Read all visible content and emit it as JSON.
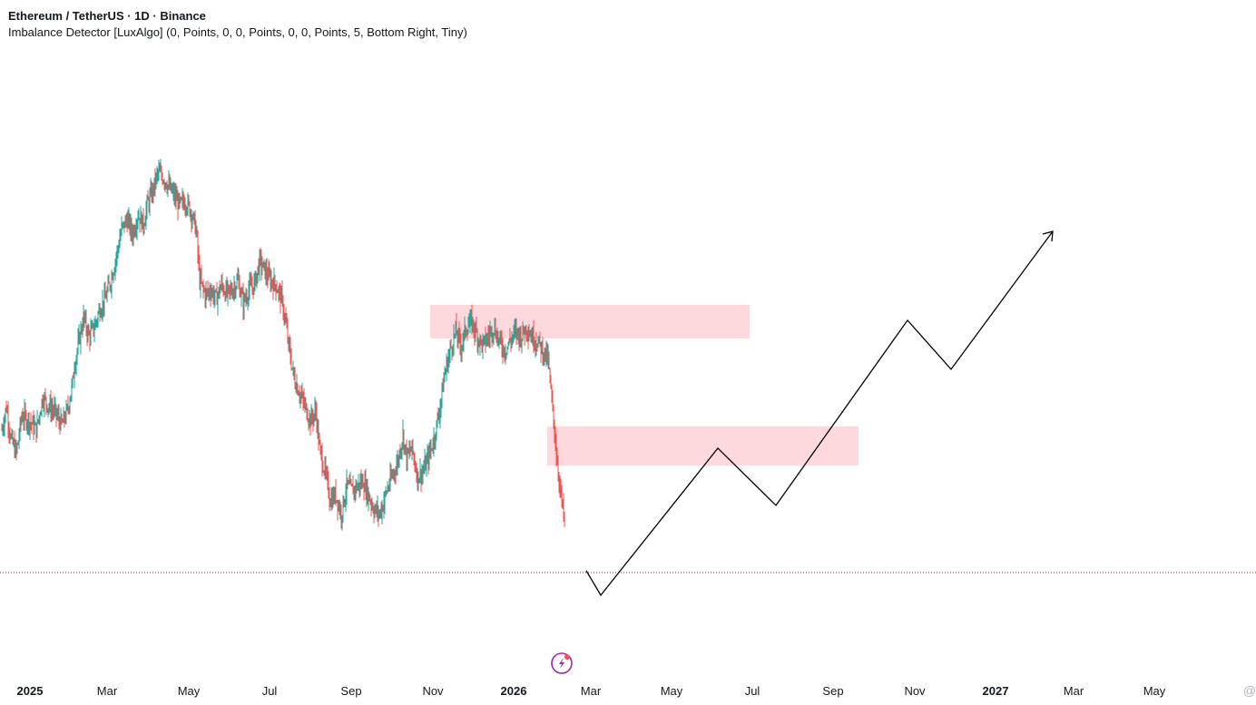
{
  "header": {
    "title": "Ethereum / TetherUS · 1D · Binance",
    "indicator": "Imbalance Detector [LuxAlgo] (0, Points, 0, 0, Points, 0, 0, Points, 5, Bottom Right, Tiny)"
  },
  "corner_mark": "@",
  "colors": {
    "up": "#26a69a",
    "down": "#ef5350",
    "zone": "#fdd9dd",
    "path": "#000000",
    "current_line": "#8b1e1e",
    "event_icon": "#9c27b0"
  },
  "chart_data": {
    "type": "candlestick",
    "x_axis_labels": [
      "2025",
      "Mar",
      "May",
      "Jul",
      "Sep",
      "Nov",
      "2026",
      "Mar",
      "May",
      "Jul",
      "Sep",
      "Nov",
      "2027",
      "Mar",
      "May"
    ],
    "bold_labels": [
      "2025",
      "2026",
      "2027"
    ],
    "price_trace": [
      [
        0,
        0.42
      ],
      [
        5,
        0.47
      ],
      [
        10,
        0.4
      ],
      [
        16,
        0.37
      ],
      [
        22,
        0.45
      ],
      [
        30,
        0.44
      ],
      [
        38,
        0.42
      ],
      [
        45,
        0.49
      ],
      [
        52,
        0.47
      ],
      [
        58,
        0.46
      ],
      [
        66,
        0.43
      ],
      [
        72,
        0.46
      ],
      [
        78,
        0.52
      ],
      [
        80,
        0.56
      ],
      [
        84,
        0.6
      ],
      [
        90,
        0.66
      ],
      [
        96,
        0.62
      ],
      [
        102,
        0.64
      ],
      [
        108,
        0.68
      ],
      [
        114,
        0.7
      ],
      [
        120,
        0.74
      ],
      [
        126,
        0.79
      ],
      [
        132,
        0.85
      ],
      [
        138,
        0.87
      ],
      [
        144,
        0.84
      ],
      [
        150,
        0.88
      ],
      [
        156,
        0.86
      ],
      [
        160,
        0.9
      ],
      [
        166,
        0.93
      ],
      [
        172,
        0.97
      ],
      [
        178,
        0.96
      ],
      [
        184,
        0.94
      ],
      [
        190,
        0.92
      ],
      [
        196,
        0.9
      ],
      [
        202,
        0.91
      ],
      [
        208,
        0.89
      ],
      [
        214,
        0.85
      ],
      [
        218,
        0.74
      ],
      [
        224,
        0.71
      ],
      [
        230,
        0.72
      ],
      [
        236,
        0.7
      ],
      [
        242,
        0.73
      ],
      [
        248,
        0.71
      ],
      [
        254,
        0.72
      ],
      [
        260,
        0.74
      ],
      [
        266,
        0.69
      ],
      [
        272,
        0.72
      ],
      [
        278,
        0.73
      ],
      [
        284,
        0.78
      ],
      [
        290,
        0.76
      ],
      [
        296,
        0.74
      ],
      [
        302,
        0.73
      ],
      [
        308,
        0.7
      ],
      [
        312,
        0.66
      ],
      [
        316,
        0.6
      ],
      [
        322,
        0.53
      ],
      [
        328,
        0.5
      ],
      [
        334,
        0.47
      ],
      [
        340,
        0.44
      ],
      [
        346,
        0.46
      ],
      [
        350,
        0.38
      ],
      [
        356,
        0.33
      ],
      [
        362,
        0.27
      ],
      [
        368,
        0.28
      ],
      [
        374,
        0.24
      ],
      [
        380,
        0.3
      ],
      [
        386,
        0.29
      ],
      [
        392,
        0.3
      ],
      [
        398,
        0.31
      ],
      [
        404,
        0.28
      ],
      [
        410,
        0.25
      ],
      [
        416,
        0.24
      ],
      [
        420,
        0.26
      ],
      [
        424,
        0.29
      ],
      [
        430,
        0.32
      ],
      [
        436,
        0.35
      ],
      [
        442,
        0.41
      ],
      [
        446,
        0.36
      ],
      [
        452,
        0.38
      ],
      [
        458,
        0.32
      ],
      [
        464,
        0.33
      ],
      [
        470,
        0.36
      ],
      [
        476,
        0.4
      ],
      [
        482,
        0.46
      ],
      [
        488,
        0.54
      ],
      [
        494,
        0.59
      ],
      [
        500,
        0.63
      ],
      [
        506,
        0.6
      ],
      [
        512,
        0.64
      ],
      [
        518,
        0.65
      ],
      [
        524,
        0.62
      ],
      [
        530,
        0.6
      ],
      [
        536,
        0.62
      ],
      [
        542,
        0.64
      ],
      [
        548,
        0.61
      ],
      [
        554,
        0.59
      ],
      [
        560,
        0.61
      ],
      [
        566,
        0.63
      ],
      [
        572,
        0.62
      ],
      [
        578,
        0.64
      ],
      [
        584,
        0.62
      ],
      [
        590,
        0.61
      ],
      [
        596,
        0.59
      ],
      [
        602,
        0.57
      ],
      [
        604,
        0.52
      ],
      [
        608,
        0.44
      ],
      [
        612,
        0.35
      ],
      [
        616,
        0.28
      ],
      [
        620,
        0.22
      ]
    ]
  }
}
